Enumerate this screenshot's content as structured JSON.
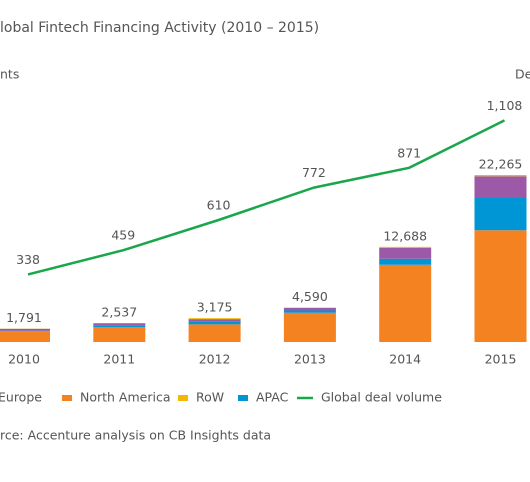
{
  "chart_data": {
    "type": "bar",
    "title": "lobal Fintech Financing Activity (2010 – 2015)",
    "y_label": "nts",
    "y2_label": "De",
    "source": "rce: Accenture analysis on CB Insights data",
    "categories": [
      "2010",
      "2011",
      "2012",
      "2013",
      "2014",
      "2015"
    ],
    "ylim": [
      0,
      32000
    ],
    "y2lim": [
      0,
      1200
    ],
    "series": [
      {
        "name": "Europe",
        "color": "#9b59a8",
        "values": [
          250,
          350,
          300,
          350,
          1450,
          2900
        ]
      },
      {
        "name": "North America",
        "color": "#f58220",
        "values": [
          1450,
          2000,
          2350,
          3900,
          10300,
          14900
        ]
      },
      {
        "name": "RoW",
        "color": "#f5b800",
        "values": [
          31,
          37,
          125,
          40,
          138,
          165
        ]
      },
      {
        "name": "APAC",
        "color": "#0096d6",
        "values": [
          60,
          150,
          400,
          300,
          800,
          4300
        ]
      },
      {
        "name": "Global deal volume",
        "color": "#1aa64a",
        "type": "line",
        "axis": "y2",
        "values": [
          338,
          459,
          610,
          772,
          871,
          1108
        ],
        "value_labels": [
          "338",
          "459",
          "610",
          "772",
          "871",
          "1,108"
        ]
      }
    ],
    "stack_order": [
      "North America",
      "APAC",
      "Europe",
      "RoW"
    ],
    "totals": {
      "values": [
        1791,
        2537,
        3175,
        4590,
        12688,
        22265
      ],
      "value_labels": [
        "1,791",
        "2,537",
        "3,175",
        "4,590",
        "12,688",
        "22,265"
      ]
    }
  }
}
